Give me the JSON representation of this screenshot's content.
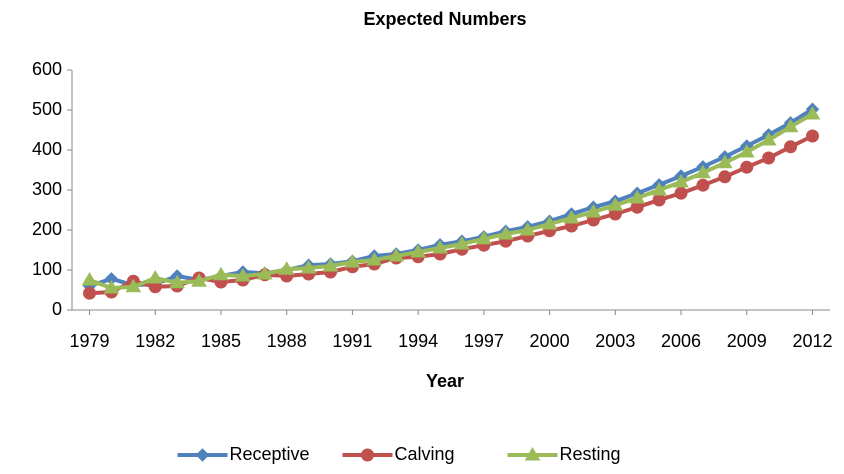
{
  "chart_data": {
    "type": "line",
    "title": "Expected Numbers",
    "x_label": "Year",
    "x": [
      1979,
      1980,
      1981,
      1982,
      1983,
      1984,
      1985,
      1986,
      1987,
      1988,
      1989,
      1990,
      1991,
      1992,
      1993,
      1994,
      1995,
      1996,
      1997,
      1998,
      1999,
      2000,
      2001,
      2002,
      2003,
      2004,
      2005,
      2006,
      2007,
      2008,
      2009,
      2010,
      2011,
      2012
    ],
    "series": [
      {
        "name": "Receptive",
        "color": "#4f81bd",
        "marker": "diamond",
        "values": [
          60,
          78,
          62,
          65,
          85,
          75,
          85,
          95,
          92,
          100,
          112,
          115,
          122,
          135,
          140,
          150,
          163,
          172,
          183,
          197,
          208,
          222,
          240,
          257,
          272,
          292,
          313,
          335,
          358,
          383,
          410,
          438,
          468,
          502
        ]
      },
      {
        "name": "Calving",
        "color": "#c0504d",
        "marker": "circle",
        "values": [
          42,
          45,
          72,
          58,
          60,
          80,
          70,
          75,
          88,
          85,
          90,
          95,
          108,
          115,
          130,
          133,
          140,
          152,
          162,
          172,
          185,
          198,
          210,
          225,
          240,
          257,
          275,
          292,
          312,
          333,
          357,
          380,
          408,
          435
        ]
      },
      {
        "name": "Resting",
        "color": "#9bbb59",
        "marker": "triangle",
        "values": [
          75,
          55,
          58,
          80,
          68,
          72,
          88,
          85,
          90,
          102,
          105,
          110,
          120,
          125,
          135,
          145,
          155,
          165,
          178,
          190,
          200,
          215,
          230,
          245,
          262,
          280,
          300,
          320,
          343,
          368,
          395,
          425,
          458,
          490
        ]
      }
    ],
    "xlim": [
      1978.2,
      2012.8
    ],
    "xticks": [
      1979,
      1982,
      1985,
      1988,
      1991,
      1994,
      1997,
      2000,
      2003,
      2006,
      2009,
      2012
    ],
    "ylim": [
      0,
      600
    ],
    "yticks": [
      0,
      100,
      200,
      300,
      400,
      500,
      600
    ],
    "grid": false,
    "legend": "bottom"
  }
}
